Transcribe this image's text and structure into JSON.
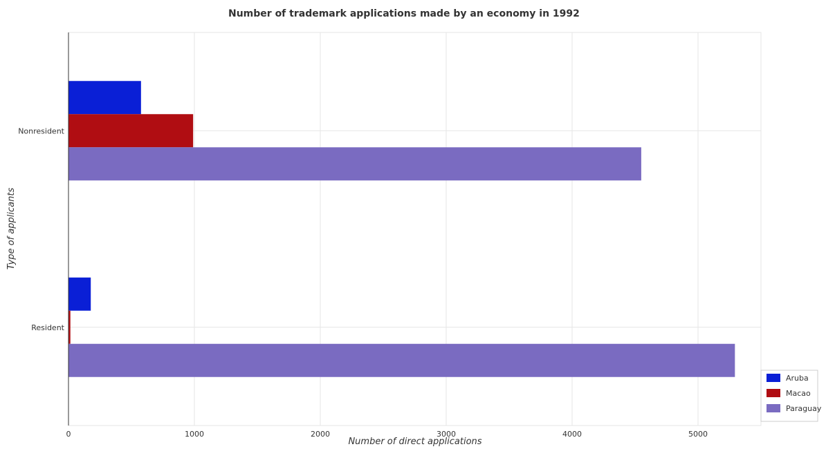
{
  "chart_data": {
    "type": "bar",
    "orientation": "horizontal",
    "title": "Number of trademark applications made by an economy in 1992",
    "xlabel": "Number of direct applications",
    "ylabel": "Type of applicants",
    "categories": [
      "Nonresident",
      "Resident"
    ],
    "xlim": [
      0,
      5500
    ],
    "xticks": [
      0,
      1000,
      2000,
      3000,
      4000,
      5000
    ],
    "xtick_labels": [
      "0",
      "1000",
      "2000",
      "3000",
      "4000",
      "5000"
    ],
    "grid": true,
    "legend_position": "bottom-right",
    "series": [
      {
        "name": "Aruba",
        "color": "#0a1fd6",
        "values": [
          576,
          177
        ]
      },
      {
        "name": "Macao",
        "color": "#b00d12",
        "values": [
          990,
          15
        ]
      },
      {
        "name": "Paraguay",
        "color": "#7a6bc1",
        "values": [
          4549,
          5293
        ]
      }
    ]
  }
}
